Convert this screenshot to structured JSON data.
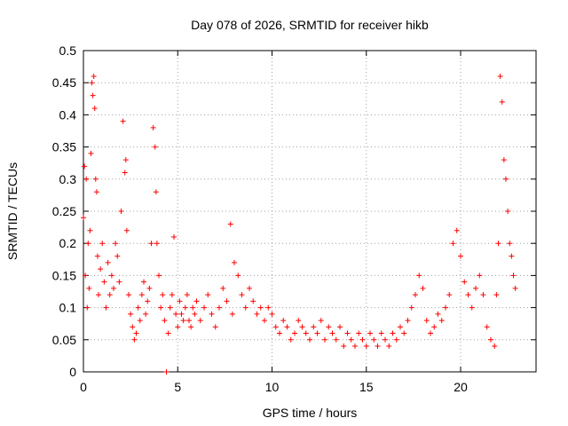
{
  "chart_data": {
    "type": "scatter",
    "title": "Day 078 of 2026, SRMTID for receiver hikb",
    "xlabel": "GPS time / hours",
    "ylabel": "SRMTID / TECUs",
    "xlim": [
      0,
      24
    ],
    "ylim": [
      0,
      0.5
    ],
    "xticks": [
      0,
      5,
      10,
      15,
      20
    ],
    "xtick_labels": [
      "0",
      "5",
      "10",
      "15",
      "20"
    ],
    "yticks": [
      0,
      0.05,
      0.1,
      0.15,
      0.2,
      0.25,
      0.3,
      0.35,
      0.4,
      0.45,
      0.5
    ],
    "ytick_labels": [
      "0",
      "0.05",
      "0.1",
      "0.15",
      "0.2",
      "0.25",
      "0.3",
      "0.35",
      "0.4",
      "0.45",
      "0.5"
    ],
    "grid": true,
    "marker": "+",
    "color": "#ff0000",
    "series": [
      {
        "name": "SRMTID",
        "x": [
          0.0,
          0.05,
          0.1,
          0.15,
          0.2,
          0.25,
          0.3,
          0.35,
          0.4,
          0.45,
          0.5,
          0.55,
          0.6,
          0.65,
          0.7,
          0.75,
          0.8,
          0.9,
          1.0,
          1.1,
          1.2,
          1.3,
          1.4,
          1.5,
          1.6,
          1.7,
          1.8,
          1.9,
          2.0,
          2.1,
          2.2,
          2.25,
          2.3,
          2.4,
          2.5,
          2.6,
          2.7,
          2.8,
          2.9,
          3.0,
          3.1,
          3.2,
          3.3,
          3.4,
          3.5,
          3.6,
          3.7,
          3.8,
          3.85,
          3.9,
          4.0,
          4.1,
          4.2,
          4.3,
          4.4,
          4.5,
          4.6,
          4.7,
          4.8,
          4.9,
          5.0,
          5.1,
          5.2,
          5.3,
          5.4,
          5.5,
          5.6,
          5.7,
          5.8,
          5.9,
          6.0,
          6.2,
          6.4,
          6.6,
          6.8,
          7.0,
          7.2,
          7.4,
          7.6,
          7.8,
          7.9,
          8.0,
          8.2,
          8.4,
          8.6,
          8.8,
          9.0,
          9.2,
          9.4,
          9.6,
          9.8,
          10.0,
          10.2,
          10.4,
          10.6,
          10.8,
          11.0,
          11.2,
          11.4,
          11.6,
          11.8,
          12.0,
          12.2,
          12.4,
          12.6,
          12.8,
          13.0,
          13.2,
          13.4,
          13.6,
          13.8,
          14.0,
          14.2,
          14.4,
          14.6,
          14.8,
          15.0,
          15.2,
          15.4,
          15.6,
          15.8,
          16.0,
          16.2,
          16.4,
          16.6,
          16.8,
          17.0,
          17.2,
          17.4,
          17.6,
          17.8,
          18.0,
          18.2,
          18.4,
          18.6,
          18.8,
          19.0,
          19.2,
          19.4,
          19.6,
          19.8,
          20.0,
          20.2,
          20.4,
          20.6,
          20.8,
          21.0,
          21.2,
          21.4,
          21.6,
          21.8,
          21.9,
          22.0,
          22.1,
          22.2,
          22.3,
          22.4,
          22.5,
          22.6,
          22.7,
          22.8,
          22.9
        ],
        "y": [
          0.24,
          0.32,
          0.15,
          0.3,
          0.1,
          0.2,
          0.13,
          0.22,
          0.34,
          0.45,
          0.43,
          0.46,
          0.41,
          0.3,
          0.28,
          0.18,
          0.12,
          0.16,
          0.2,
          0.14,
          0.1,
          0.17,
          0.12,
          0.15,
          0.13,
          0.2,
          0.18,
          0.14,
          0.25,
          0.39,
          0.31,
          0.33,
          0.22,
          0.12,
          0.09,
          0.07,
          0.05,
          0.06,
          0.1,
          0.08,
          0.12,
          0.14,
          0.09,
          0.11,
          0.13,
          0.2,
          0.38,
          0.35,
          0.28,
          0.2,
          0.15,
          0.1,
          0.12,
          0.08,
          0.0,
          0.06,
          0.1,
          0.12,
          0.21,
          0.09,
          0.07,
          0.11,
          0.09,
          0.08,
          0.1,
          0.12,
          0.08,
          0.07,
          0.1,
          0.09,
          0.11,
          0.08,
          0.1,
          0.12,
          0.09,
          0.07,
          0.1,
          0.13,
          0.11,
          0.23,
          0.09,
          0.17,
          0.15,
          0.12,
          0.1,
          0.13,
          0.11,
          0.09,
          0.1,
          0.08,
          0.1,
          0.09,
          0.07,
          0.06,
          0.08,
          0.07,
          0.05,
          0.06,
          0.08,
          0.07,
          0.06,
          0.05,
          0.07,
          0.06,
          0.08,
          0.05,
          0.07,
          0.06,
          0.05,
          0.07,
          0.04,
          0.06,
          0.05,
          0.04,
          0.06,
          0.05,
          0.04,
          0.06,
          0.05,
          0.04,
          0.06,
          0.05,
          0.04,
          0.06,
          0.05,
          0.07,
          0.06,
          0.08,
          0.1,
          0.12,
          0.15,
          0.13,
          0.08,
          0.06,
          0.07,
          0.09,
          0.08,
          0.1,
          0.12,
          0.2,
          0.22,
          0.18,
          0.14,
          0.12,
          0.1,
          0.13,
          0.15,
          0.12,
          0.07,
          0.05,
          0.04,
          0.12,
          0.2,
          0.46,
          0.42,
          0.33,
          0.3,
          0.25,
          0.2,
          0.18,
          0.15,
          0.13
        ]
      }
    ]
  }
}
